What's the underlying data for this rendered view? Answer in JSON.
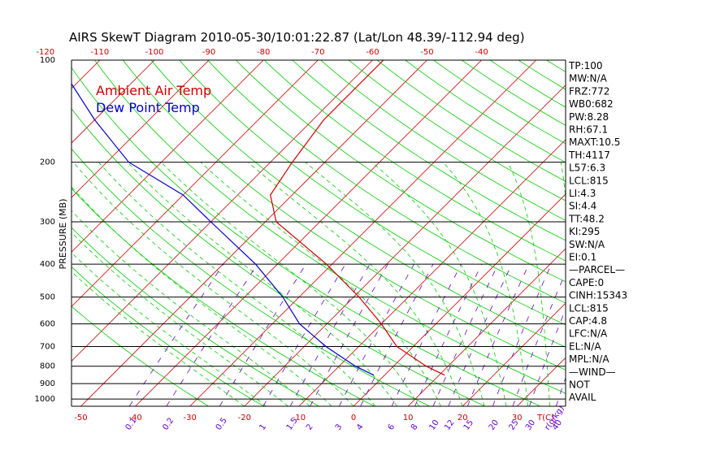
{
  "title": "AIRS SkewT Diagram 2010-05-30/10:01:22.87 (Lat/Lon 48.39/-112.94 deg)",
  "colors": {
    "temperature": "#cc0000",
    "dewpoint": "#0000cc",
    "isotherm": "#cc0000",
    "dry_adiabat": "#00cc00",
    "moist_adiabat": "#00cc00",
    "mixing_ratio": "#6600cc",
    "pressure_line": "#000000",
    "frame": "#000000"
  },
  "chart_data": {
    "type": "line",
    "title": "AIRS SkewT Diagram 2010-05-30/10:01:22.87 (Lat/Lon 48.39/-112.94 deg)",
    "ylabel": "PRESSURE (MB)",
    "y_scale": "log",
    "ylim": [
      1050,
      100
    ],
    "y_ticks": [
      100,
      200,
      300,
      400,
      500,
      600,
      700,
      800,
      900,
      1000
    ],
    "top_ticks": [
      -120,
      -110,
      -100,
      -90,
      -80,
      -70,
      -60,
      -50,
      -40
    ],
    "bottom_ticks": [
      -50,
      -40,
      -30,
      -20,
      -10,
      0,
      10,
      20,
      30
    ],
    "bottom_unit_label": "T(C)",
    "mixing_ratio_labels": [
      "0.1",
      "0.2",
      "0.5",
      "1",
      "1.5",
      "2",
      "3",
      "4",
      "6",
      "8",
      "10",
      "12",
      "15",
      "20",
      "25",
      "30",
      "40",
      "r(g/kg)"
    ],
    "mixing_ratio_values": [
      0.1,
      0.2,
      0.5,
      1,
      1.5,
      2,
      3,
      4,
      6,
      8,
      10,
      12,
      15,
      20,
      25,
      30,
      40
    ],
    "grid": true,
    "legend_position": "top-left",
    "series": [
      {
        "name": "Ambient Air Temp",
        "pressure": [
          850,
          800,
          700,
          600,
          500,
          400,
          300,
          250,
          200,
          150,
          100
        ],
        "temperature": [
          11,
          6,
          -3,
          -10,
          -19,
          -31,
          -48,
          -54,
          -56,
          -58,
          -58
        ]
      },
      {
        "name": "Dew Point Temp",
        "pressure": [
          850,
          800,
          700,
          600,
          500,
          400,
          300,
          250,
          200,
          150,
          100
        ],
        "temperature": [
          -2,
          -7,
          -16,
          -25,
          -33,
          -44,
          -60,
          -70,
          -86,
          -100,
          -118
        ]
      }
    ]
  },
  "indices": [
    "TP:100",
    "MW:N/A",
    "FRZ:772",
    "WB0:682",
    "PW:8.28",
    "RH:67.1",
    "MAXT:10.5",
    "TH:4117",
    "L57:6.3",
    "LCL:815",
    "LI:4.3",
    "SI:4.4",
    "TT:48.2",
    "KI:295",
    "SW:N/A",
    "EI:0.1",
    "—PARCEL—",
    "CAPE:0",
    "CINH:15343",
    "LCL:815",
    "CAP:4.8",
    "LFC:N/A",
    "EL:N/A",
    "MPL:N/A",
    "—WIND—",
    "NOT",
    "AVAIL"
  ]
}
